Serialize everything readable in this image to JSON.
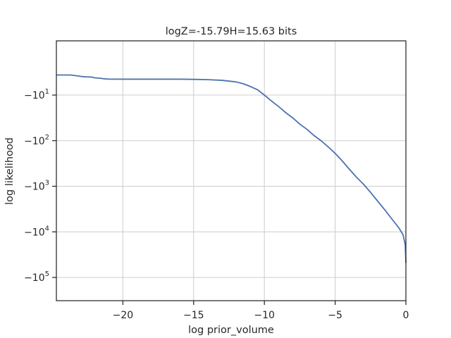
{
  "chart_data": {
    "type": "line",
    "title": "logZ=-15.79H=15.63 bits",
    "xlabel": "log prior_volume",
    "ylabel": "log likelihood",
    "x_scale": "linear",
    "y_scale": "symlog",
    "xlim": [
      -24.7,
      0
    ],
    "x_ticks": [
      -20,
      -15,
      -10,
      -5,
      0
    ],
    "x_tick_labels": [
      "−20",
      "−15",
      "−10",
      "−5",
      "0"
    ],
    "y_ticks": [
      -10,
      -100,
      -1000,
      -10000,
      -100000
    ],
    "y_tick_labels": [
      {
        "base": "−10",
        "exp": "1"
      },
      {
        "base": "−10",
        "exp": "2"
      },
      {
        "base": "−10",
        "exp": "3"
      },
      {
        "base": "−10",
        "exp": "4"
      },
      {
        "base": "−10",
        "exp": "5"
      }
    ],
    "grid": true,
    "series": [
      {
        "color": "#4c72b0",
        "x": [
          -24.7,
          -23.7,
          -23.4,
          -23.0,
          -22.7,
          -22.5,
          -22.2,
          -22.0,
          -21.6,
          -21.3,
          -21.0,
          -20.0,
          -18.0,
          -16.0,
          -15.0,
          -14.0,
          -13.0,
          -12.0,
          -11.5,
          -11.0,
          -10.5,
          -10.0,
          -9.5,
          -9.0,
          -8.5,
          -8.0,
          -7.5,
          -7.0,
          -6.5,
          -6.0,
          -5.5,
          -5.0,
          -4.5,
          -4.0,
          -3.5,
          -3.0,
          -2.5,
          -2.0,
          -1.5,
          -1.0,
          -0.5,
          -0.2,
          -0.05,
          0.0
        ],
        "y": [
          -1.16,
          -1.16,
          -1.4,
          -1.75,
          -1.95,
          -2.0,
          -2.05,
          -2.4,
          -2.6,
          -2.85,
          -2.98,
          -3.0,
          -3.0,
          -3.0,
          -3.07,
          -3.2,
          -3.5,
          -4.2,
          -5.0,
          -6.2,
          -7.6,
          -10.0,
          -13.5,
          -17.8,
          -24.2,
          -31.6,
          -43.3,
          -56.2,
          -76.9,
          -100.0,
          -136.0,
          -190.0,
          -278.0,
          -422.0,
          -630.0,
          -900.0,
          -1360.0,
          -2110.0,
          -3270.0,
          -5180.0,
          -8160.0,
          -11600.0,
          -19000.0,
          -48000.0
        ]
      }
    ]
  }
}
